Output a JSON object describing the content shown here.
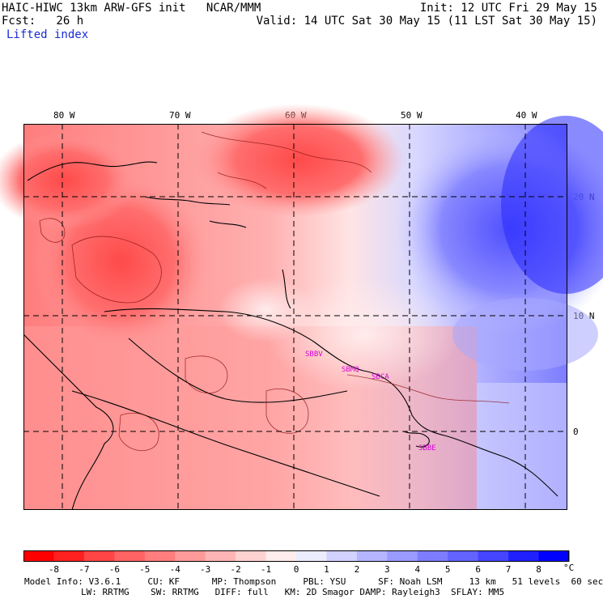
{
  "header": {
    "left_line1": "HAIC-HIWC 13km ARW-GFS init   NCAR/MMM",
    "left_line2": "Fcst:   26 h",
    "field": "Lifted index",
    "right_line1": "Init: 12 UTC Fri 29 May 15",
    "right_line2": "Valid: 14 UTC Sat 30 May 15 (11 LST Sat 30 May 15)"
  },
  "map": {
    "lon_labels": [
      "80 W",
      "70 W",
      "60 W",
      "50 W",
      "40 W"
    ],
    "lat_labels": [
      "20 N",
      "10 N",
      "0"
    ],
    "stations": [
      "SBBV",
      "SBMQ",
      "SBCA",
      "SBBE"
    ]
  },
  "colorbar": {
    "ticks": [
      "-8",
      "-7",
      "-6",
      "-5",
      "-4",
      "-3",
      "-2",
      "-1",
      "0",
      "1",
      "2",
      "3",
      "4",
      "5",
      "6",
      "7",
      "8"
    ],
    "unit": "°C",
    "colors": [
      "#ff0000",
      "#ff2020",
      "#ff4545",
      "#ff6363",
      "#ff7d7d",
      "#ff9a9a",
      "#ffb5b5",
      "#ffd2d2",
      "#ffecec",
      "#ececff",
      "#d2d2ff",
      "#b5b5ff",
      "#9a9aff",
      "#7d7dff",
      "#6363ff",
      "#4545ff",
      "#2020ff",
      "#0000ff"
    ]
  },
  "model_info": {
    "line1": "Model Info: V3.6.1     CU: KF      MP: Thompson     PBL: YSU      SF: Noah LSM     13 km   51 levels  60 sec",
    "line2": "LW: RRTMG    SW: RRTMG   DIFF: full   KM: 2D Smagor DAMP: Rayleigh3  SFLAY: MM5"
  }
}
